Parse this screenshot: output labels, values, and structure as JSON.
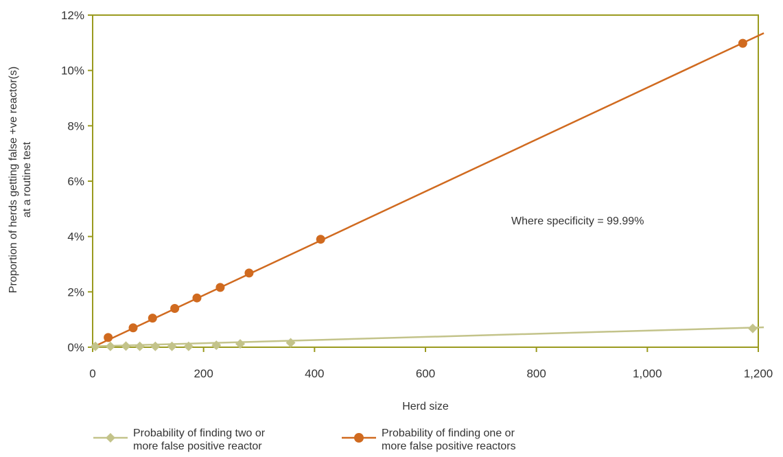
{
  "chart_data": {
    "type": "line",
    "title": "",
    "xlabel": "Herd size",
    "ylabel_lines": [
      "Proportion of herds getting false +ve reactor(s)",
      "at a routine test"
    ],
    "xlim": [
      0,
      1200
    ],
    "ylim": [
      0,
      12
    ],
    "x_ticks": [
      0,
      200,
      400,
      600,
      800,
      1000,
      1200
    ],
    "x_tick_labels": [
      "0",
      "200",
      "400",
      "600",
      "800",
      "1,000",
      "1,200"
    ],
    "y_ticks": [
      0,
      2,
      4,
      6,
      8,
      10,
      12
    ],
    "y_tick_labels": [
      "0%",
      "2%",
      "4%",
      "6%",
      "8%",
      "10%",
      "12%"
    ],
    "grid": false,
    "legend_position": "bottom",
    "annotation": "Where specificity = 99.99%",
    "series": [
      {
        "name_lines": [
          "Probability of finding two or",
          "more false positive reactor"
        ],
        "marker": "diamond",
        "color": "#c3c38a",
        "points": [
          [
            5,
            0.03
          ],
          [
            32,
            0.03
          ],
          [
            60,
            0.04
          ],
          [
            85,
            0.03
          ],
          [
            113,
            0.03
          ],
          [
            143,
            0.03
          ],
          [
            173,
            0.03
          ],
          [
            223,
            0.07
          ],
          [
            266,
            0.12
          ],
          [
            357,
            0.16
          ],
          [
            1190,
            0.68
          ]
        ],
        "line": [
          [
            0,
            0.03
          ],
          [
            1210,
            0.72
          ]
        ]
      },
      {
        "name_lines": [
          "Probability of finding one or",
          "more false positive reactors"
        ],
        "marker": "circle",
        "color": "#d06a1f",
        "points": [
          [
            28,
            0.35
          ],
          [
            73,
            0.7
          ],
          [
            108,
            1.05
          ],
          [
            148,
            1.4
          ],
          [
            188,
            1.78
          ],
          [
            230,
            2.16
          ],
          [
            282,
            2.68
          ],
          [
            411,
            3.9
          ],
          [
            1172,
            10.98
          ]
        ],
        "line": [
          [
            0,
            0.0
          ],
          [
            1210,
            11.35
          ]
        ]
      }
    ]
  }
}
